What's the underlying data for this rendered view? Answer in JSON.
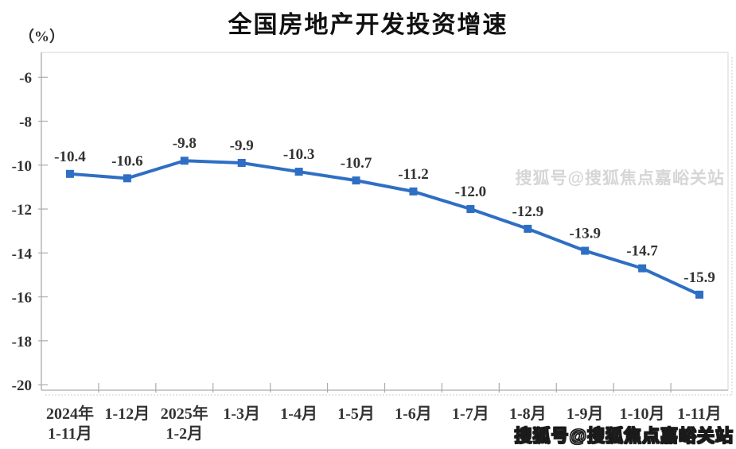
{
  "watermark": {
    "faint_text": "搜狐号@搜狐焦点嘉峪关站",
    "bottom_text": "搜狐号@搜狐焦点嘉峪关站"
  },
  "chart_data": {
    "type": "line",
    "title": "全国房地产开发投资增速",
    "unit_label": "（%）",
    "categories": [
      "2024年\n1-11月",
      "1-12月",
      "2025年\n1-2月",
      "1-3月",
      "1-4月",
      "1-5月",
      "1-6月",
      "1-7月",
      "1-8月",
      "1-9月",
      "1-10月",
      "1-11月"
    ],
    "series": [
      {
        "name": "全国房地产开发投资增速",
        "values": [
          -10.4,
          -10.6,
          -9.8,
          -9.9,
          -10.3,
          -10.7,
          -11.2,
          -12.0,
          -12.9,
          -13.9,
          -14.7,
          -15.9
        ]
      }
    ],
    "data_labels": [
      "-10.4",
      "-10.6",
      "-9.8",
      "-9.9",
      "-10.3",
      "-10.7",
      "-11.2",
      "-12.0",
      "-12.9",
      "-13.9",
      "-14.7",
      "-15.9"
    ],
    "y_ticks": [
      -6,
      -8,
      -10,
      -12,
      -14,
      -16,
      -18,
      -20
    ],
    "ylim": [
      -20.25,
      -4.87
    ],
    "grid": false,
    "legend_position": "none",
    "line_color": "#2e6fc4",
    "marker_shape": "square",
    "axis_color": "#ababab",
    "border_color": "#d6d6d6",
    "shadow_color": "#cfcfcf",
    "label_color": "#333333"
  }
}
